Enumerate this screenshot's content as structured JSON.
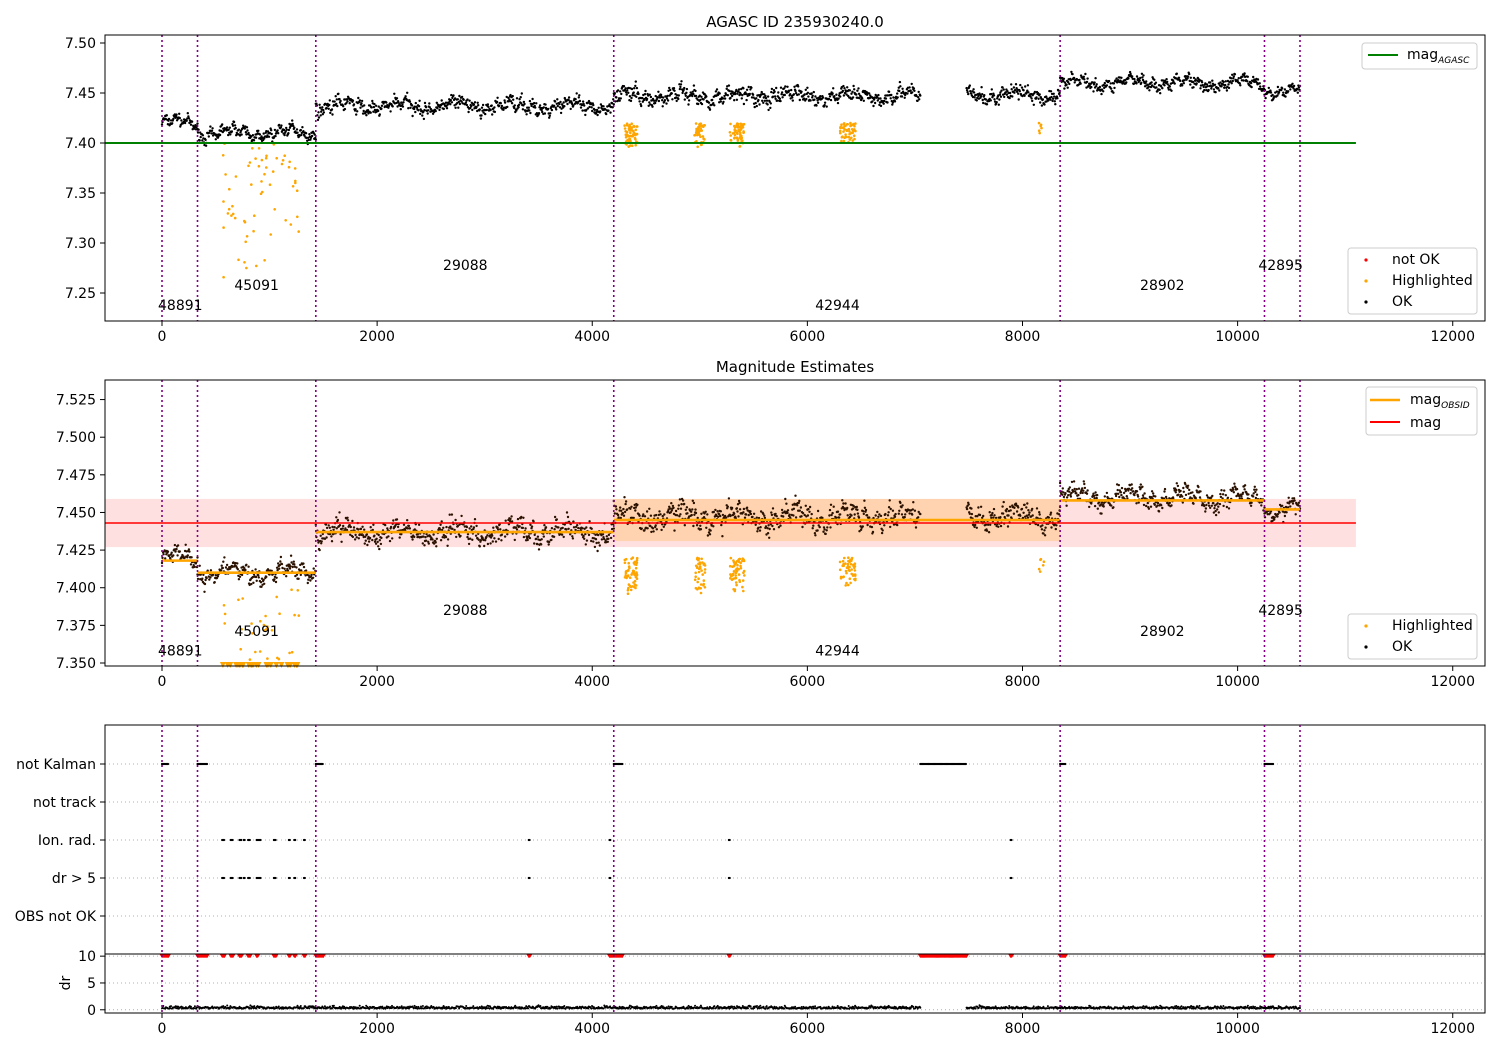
{
  "chart_data": [
    {
      "type": "scatter",
      "title": "AGASC ID 235930240.0",
      "xlim": [
        -530,
        12300
      ],
      "ylim": [
        7.222,
        7.508
      ],
      "x_ticks": [
        0,
        2000,
        4000,
        6000,
        8000,
        10000,
        12000
      ],
      "y_ticks": [
        7.25,
        7.3,
        7.35,
        7.4,
        7.45,
        7.5
      ],
      "y_tick_labels": [
        "7.25",
        "7.30",
        "7.35",
        "7.40",
        "7.45",
        "7.50"
      ],
      "reference_line": {
        "label": "mag_AGASC",
        "value": 7.4,
        "x_range": [
          -530,
          11100
        ],
        "color": "#008000"
      },
      "legend": {
        "upper": [
          {
            "label": "mag",
            "subscript": "AGASC",
            "color": "#008000"
          }
        ],
        "lower": [
          {
            "label": "not OK",
            "color": "#ff0000"
          },
          {
            "label": "Highlighted",
            "color": "#ffa500"
          },
          {
            "label": "OK",
            "color": "#000000"
          }
        ]
      },
      "segments": [
        {
          "x": [
            0,
            330
          ],
          "mean": 7.42,
          "spread": 0.007
        },
        {
          "x": [
            330,
            1430
          ],
          "mean": 7.41,
          "spread": 0.008
        },
        {
          "x": [
            1430,
            4200
          ],
          "mean": 7.437,
          "spread": 0.01
        },
        {
          "x": [
            4200,
            7050
          ],
          "mean": 7.447,
          "spread": 0.011
        },
        {
          "x": [
            7480,
            8350
          ],
          "mean": 7.448,
          "spread": 0.01
        },
        {
          "x": [
            8350,
            10250
          ],
          "mean": 7.46,
          "spread": 0.008
        },
        {
          "x": [
            10250,
            10580
          ],
          "mean": 7.452,
          "spread": 0.007
        }
      ],
      "highlighted_clusters": [
        {
          "x": [
            560,
            1280
          ],
          "y": [
            7.25,
            7.4
          ],
          "n": 60
        },
        {
          "x": [
            4300,
            4420
          ],
          "y": [
            7.395,
            7.42
          ],
          "n": 60
        },
        {
          "x": [
            4950,
            5050
          ],
          "y": [
            7.395,
            7.42
          ],
          "n": 40
        },
        {
          "x": [
            5280,
            5420
          ],
          "y": [
            7.395,
            7.42
          ],
          "n": 60
        },
        {
          "x": [
            6300,
            6450
          ],
          "y": [
            7.4,
            7.42
          ],
          "n": 50
        },
        {
          "x": [
            8150,
            8200
          ],
          "y": [
            7.405,
            7.42
          ],
          "n": 6
        }
      ],
      "obsid_labels": [
        {
          "text": "48891",
          "x": 170,
          "y": 7.233
        },
        {
          "text": "45091",
          "x": 880,
          "y": 7.253
        },
        {
          "text": "29088",
          "x": 2820,
          "y": 7.273
        },
        {
          "text": "42944",
          "x": 6280,
          "y": 7.233
        },
        {
          "text": "28902",
          "x": 9300,
          "y": 7.253
        },
        {
          "text": "42895",
          "x": 10400,
          "y": 7.273
        }
      ],
      "obsid_boundaries": [
        0,
        330,
        1430,
        4200,
        8350,
        10250,
        10580
      ]
    },
    {
      "type": "scatter",
      "title": "Magnitude Estimates",
      "xlim": [
        -530,
        12300
      ],
      "ylim": [
        7.348,
        7.538
      ],
      "x_ticks": [
        0,
        2000,
        4000,
        6000,
        8000,
        10000,
        12000
      ],
      "y_ticks": [
        7.35,
        7.375,
        7.4,
        7.425,
        7.45,
        7.475,
        7.5,
        7.525
      ],
      "y_tick_labels": [
        "7.350",
        "7.375",
        "7.400",
        "7.425",
        "7.450",
        "7.475",
        "7.500",
        "7.525"
      ],
      "overall_mag": {
        "value": 7.443,
        "band": [
          7.427,
          7.459
        ],
        "x_range": [
          -530,
          11100
        ],
        "color": "#ff0000"
      },
      "obsid_mags": [
        {
          "x": [
            0,
            330
          ],
          "value": 7.418
        },
        {
          "x": [
            330,
            1430
          ],
          "value": 7.41
        },
        {
          "x": [
            1430,
            4200
          ],
          "value": 7.437
        },
        {
          "x": [
            4200,
            8350
          ],
          "value": 7.445,
          "band": [
            7.431,
            7.459
          ]
        },
        {
          "x": [
            8350,
            10250
          ],
          "value": 7.458
        },
        {
          "x": [
            10250,
            10580
          ],
          "value": 7.452
        }
      ],
      "legend": {
        "upper": [
          {
            "label": "mag",
            "subscript": "OBSID",
            "color": "#ffa500"
          },
          {
            "label": "mag",
            "color": "#ff0000"
          }
        ],
        "lower": [
          {
            "label": "Highlighted",
            "color": "#ffa500"
          },
          {
            "label": "OK",
            "color": "#000000"
          }
        ]
      },
      "obsid_labels": [
        {
          "text": "48891",
          "x": 170,
          "y": 7.355
        },
        {
          "text": "45091",
          "x": 880,
          "y": 7.368
        },
        {
          "text": "29088",
          "x": 2820,
          "y": 7.382
        },
        {
          "text": "42944",
          "x": 6280,
          "y": 7.355
        },
        {
          "text": "28902",
          "x": 9300,
          "y": 7.368
        },
        {
          "text": "42895",
          "x": 10400,
          "y": 7.382
        }
      ],
      "obsid_boundaries": [
        0,
        330,
        1430,
        4200,
        8350,
        10250,
        10580
      ]
    },
    {
      "type": "scatter",
      "title": "",
      "xlim": [
        -530,
        12300
      ],
      "flag_rows": [
        "not Kalman",
        "not track",
        "Ion. rad.",
        "dr > 5",
        "OBS not OK"
      ],
      "flag_points": {
        "not Kalman": [
          [
            0,
            60
          ],
          [
            330,
            420
          ],
          [
            1430,
            1500
          ],
          [
            4200,
            4280
          ],
          [
            7050,
            7480
          ],
          [
            8350,
            8400
          ],
          [
            10250,
            10330
          ]
        ],
        "not track": [],
        "Ion. rad.": [
          [
            560,
            580
          ],
          [
            640,
            660
          ],
          [
            720,
            740
          ],
          [
            760,
            770
          ],
          [
            800,
            820
          ],
          [
            880,
            890
          ],
          [
            900,
            920
          ],
          [
            1040,
            1060
          ],
          [
            1180,
            1190
          ],
          [
            1230,
            1240
          ],
          [
            1320,
            1330
          ],
          [
            3410,
            3420
          ],
          [
            4160,
            4170
          ],
          [
            5270,
            5280
          ],
          [
            7890,
            7900
          ]
        ],
        "dr > 5": [
          [
            560,
            580
          ],
          [
            640,
            660
          ],
          [
            720,
            740
          ],
          [
            760,
            770
          ],
          [
            800,
            820
          ],
          [
            880,
            890
          ],
          [
            900,
            920
          ],
          [
            1040,
            1060
          ],
          [
            1180,
            1190
          ],
          [
            1230,
            1240
          ],
          [
            1320,
            1330
          ],
          [
            3410,
            3420
          ],
          [
            4160,
            4170
          ],
          [
            5270,
            5280
          ],
          [
            7890,
            7900
          ]
        ],
        "OBS not OK": []
      },
      "dr_ylabel": "dr",
      "dr_ylim": [
        -0.6,
        10.4
      ],
      "dr_ticks": [
        0,
        5,
        10
      ],
      "dr_clipped_x": [
        [
          0,
          60
        ],
        [
          330,
          420
        ],
        [
          560,
          580
        ],
        [
          640,
          660
        ],
        [
          720,
          740
        ],
        [
          800,
          820
        ],
        [
          880,
          890
        ],
        [
          1040,
          1060
        ],
        [
          1180,
          1190
        ],
        [
          1230,
          1240
        ],
        [
          1320,
          1330
        ],
        [
          1430,
          1500
        ],
        [
          3410,
          3420
        ],
        [
          4160,
          4280
        ],
        [
          5270,
          5280
        ],
        [
          7050,
          7480
        ],
        [
          7890,
          7900
        ],
        [
          8350,
          8400
        ],
        [
          10250,
          10330
        ]
      ],
      "dr_clipped_value": 10,
      "x_ticks": [
        0,
        2000,
        4000,
        6000,
        8000,
        10000,
        12000
      ],
      "obsid_boundaries": [
        0,
        330,
        1430,
        4200,
        8350,
        10250,
        10580
      ]
    }
  ]
}
